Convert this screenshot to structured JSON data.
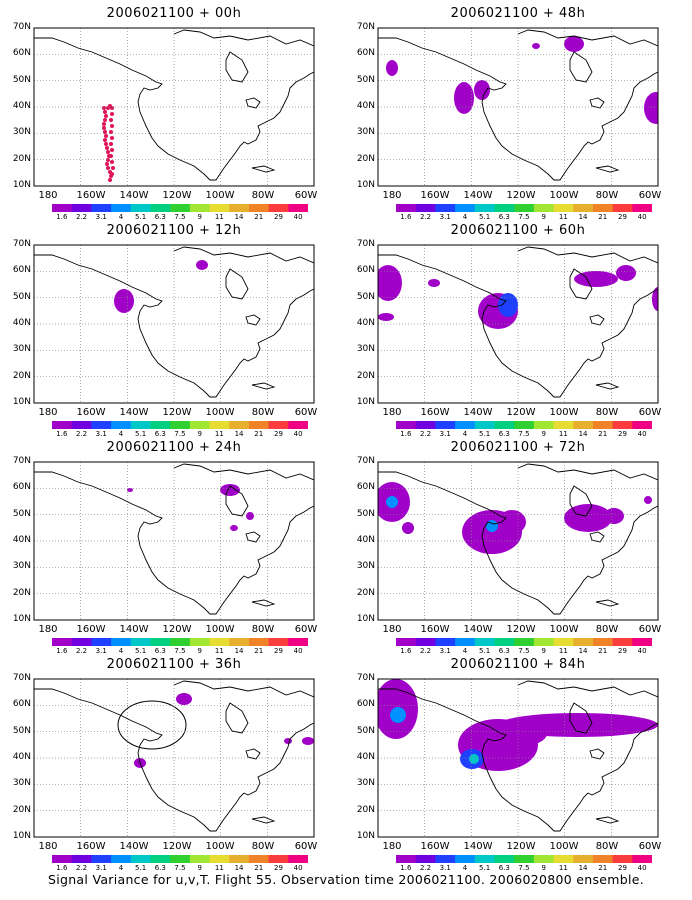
{
  "figure": {
    "caption": "Signal Variance for u,v,T. Flight 55. Observation time 2006021100. 2006020800 ensemble."
  },
  "map": {
    "lat_labels": [
      "70N",
      "60N",
      "50N",
      "40N",
      "30N",
      "20N",
      "10N"
    ],
    "lon_labels": [
      "180",
      "160W",
      "140W",
      "120W",
      "100W",
      "80W",
      "60W"
    ]
  },
  "colorbar": {
    "labels": [
      "1.6",
      "2.2",
      "3.1",
      "4",
      "5.1",
      "6.3",
      "7.5",
      "9",
      "11",
      "14",
      "21",
      "29",
      "40"
    ],
    "colors": [
      "#a000c8",
      "#7000e0",
      "#2040ff",
      "#0090ff",
      "#00c8c8",
      "#00d080",
      "#30d030",
      "#a0e632",
      "#e6dc32",
      "#e6af2d",
      "#f08228",
      "#fa3c3c",
      "#f00082"
    ]
  },
  "panels": [
    {
      "id": "p00",
      "title": "2006021100 + 00h"
    },
    {
      "id": "p48",
      "title": "2006021100 + 48h"
    },
    {
      "id": "p12",
      "title": "2006021100 + 12h"
    },
    {
      "id": "p60",
      "title": "2006021100 + 60h"
    },
    {
      "id": "p24",
      "title": "2006021100 + 24h"
    },
    {
      "id": "p72",
      "title": "2006021100 + 72h"
    },
    {
      "id": "p36",
      "title": "2006021100 + 36h"
    },
    {
      "id": "p84",
      "title": "2006021100 + 84h"
    }
  ]
}
